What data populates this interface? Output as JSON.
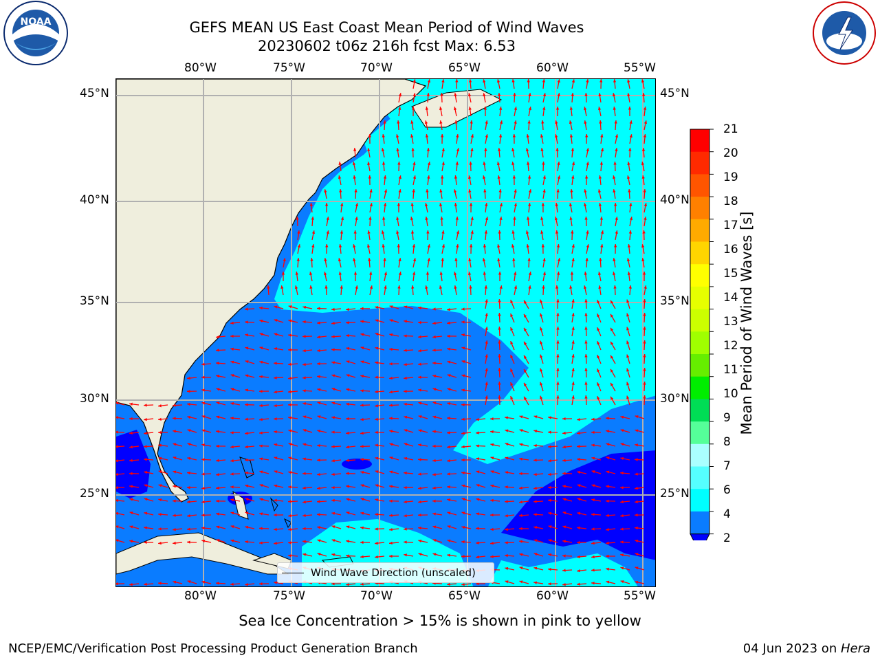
{
  "title": {
    "line1": "GEFS MEAN US East Coast Mean Period of Wind Waves",
    "line2": "20230602 t06z 216h fcst   Max: 6.53"
  },
  "logos": {
    "noaa_text": "NOAA",
    "noaa_ring": "NATIONAL OCEANIC AND ATMOSPHERIC ADMINISTRATION · U.S. DEPARTMENT OF COMMERCE",
    "nws_ring": "NATIONAL WEATHER SERVICE"
  },
  "map": {
    "lon_labels": [
      "80°W",
      "75°W",
      "70°W",
      "65°W",
      "60°W",
      "55°W"
    ],
    "lat_labels": [
      "45°N",
      "40°N",
      "35°N",
      "30°N",
      "25°N"
    ],
    "legend_label": "Wind Wave Direction (unscaled)",
    "colors": {
      "land": "#efeedd",
      "period_0_2": "#0000ff",
      "period_2_4": "#0a7cff",
      "period_4_6": "#00ffff",
      "arrow": "#ff0000",
      "grid": "#b0b0b0"
    }
  },
  "colorbar": {
    "label": "Mean Period of Wind Waves [s]",
    "ticks": [
      "21",
      "20",
      "19",
      "18",
      "17",
      "16",
      "15",
      "14",
      "13",
      "12",
      "11",
      "10",
      "9",
      "8",
      "7",
      "6",
      "4",
      "2"
    ],
    "colors": [
      "#ff0000",
      "#ff2a00",
      "#ff5500",
      "#ff8000",
      "#ffaa00",
      "#ffd500",
      "#ffff00",
      "#e6ff00",
      "#ccff00",
      "#a0ff00",
      "#66ee00",
      "#00ee00",
      "#00dd55",
      "#55ff99",
      "#aaffff",
      "#55ffff",
      "#00ffff",
      "#0a7cff"
    ],
    "extend_color": "#0000ff"
  },
  "footer": {
    "ice_note": "Sea Ice Concentration > 15% is shown in pink to yellow",
    "left": "NCEP/EMC/Verification Post Processing Product Generation Branch",
    "right_date": "04 Jun 2023 on ",
    "right_host": "Hera"
  }
}
